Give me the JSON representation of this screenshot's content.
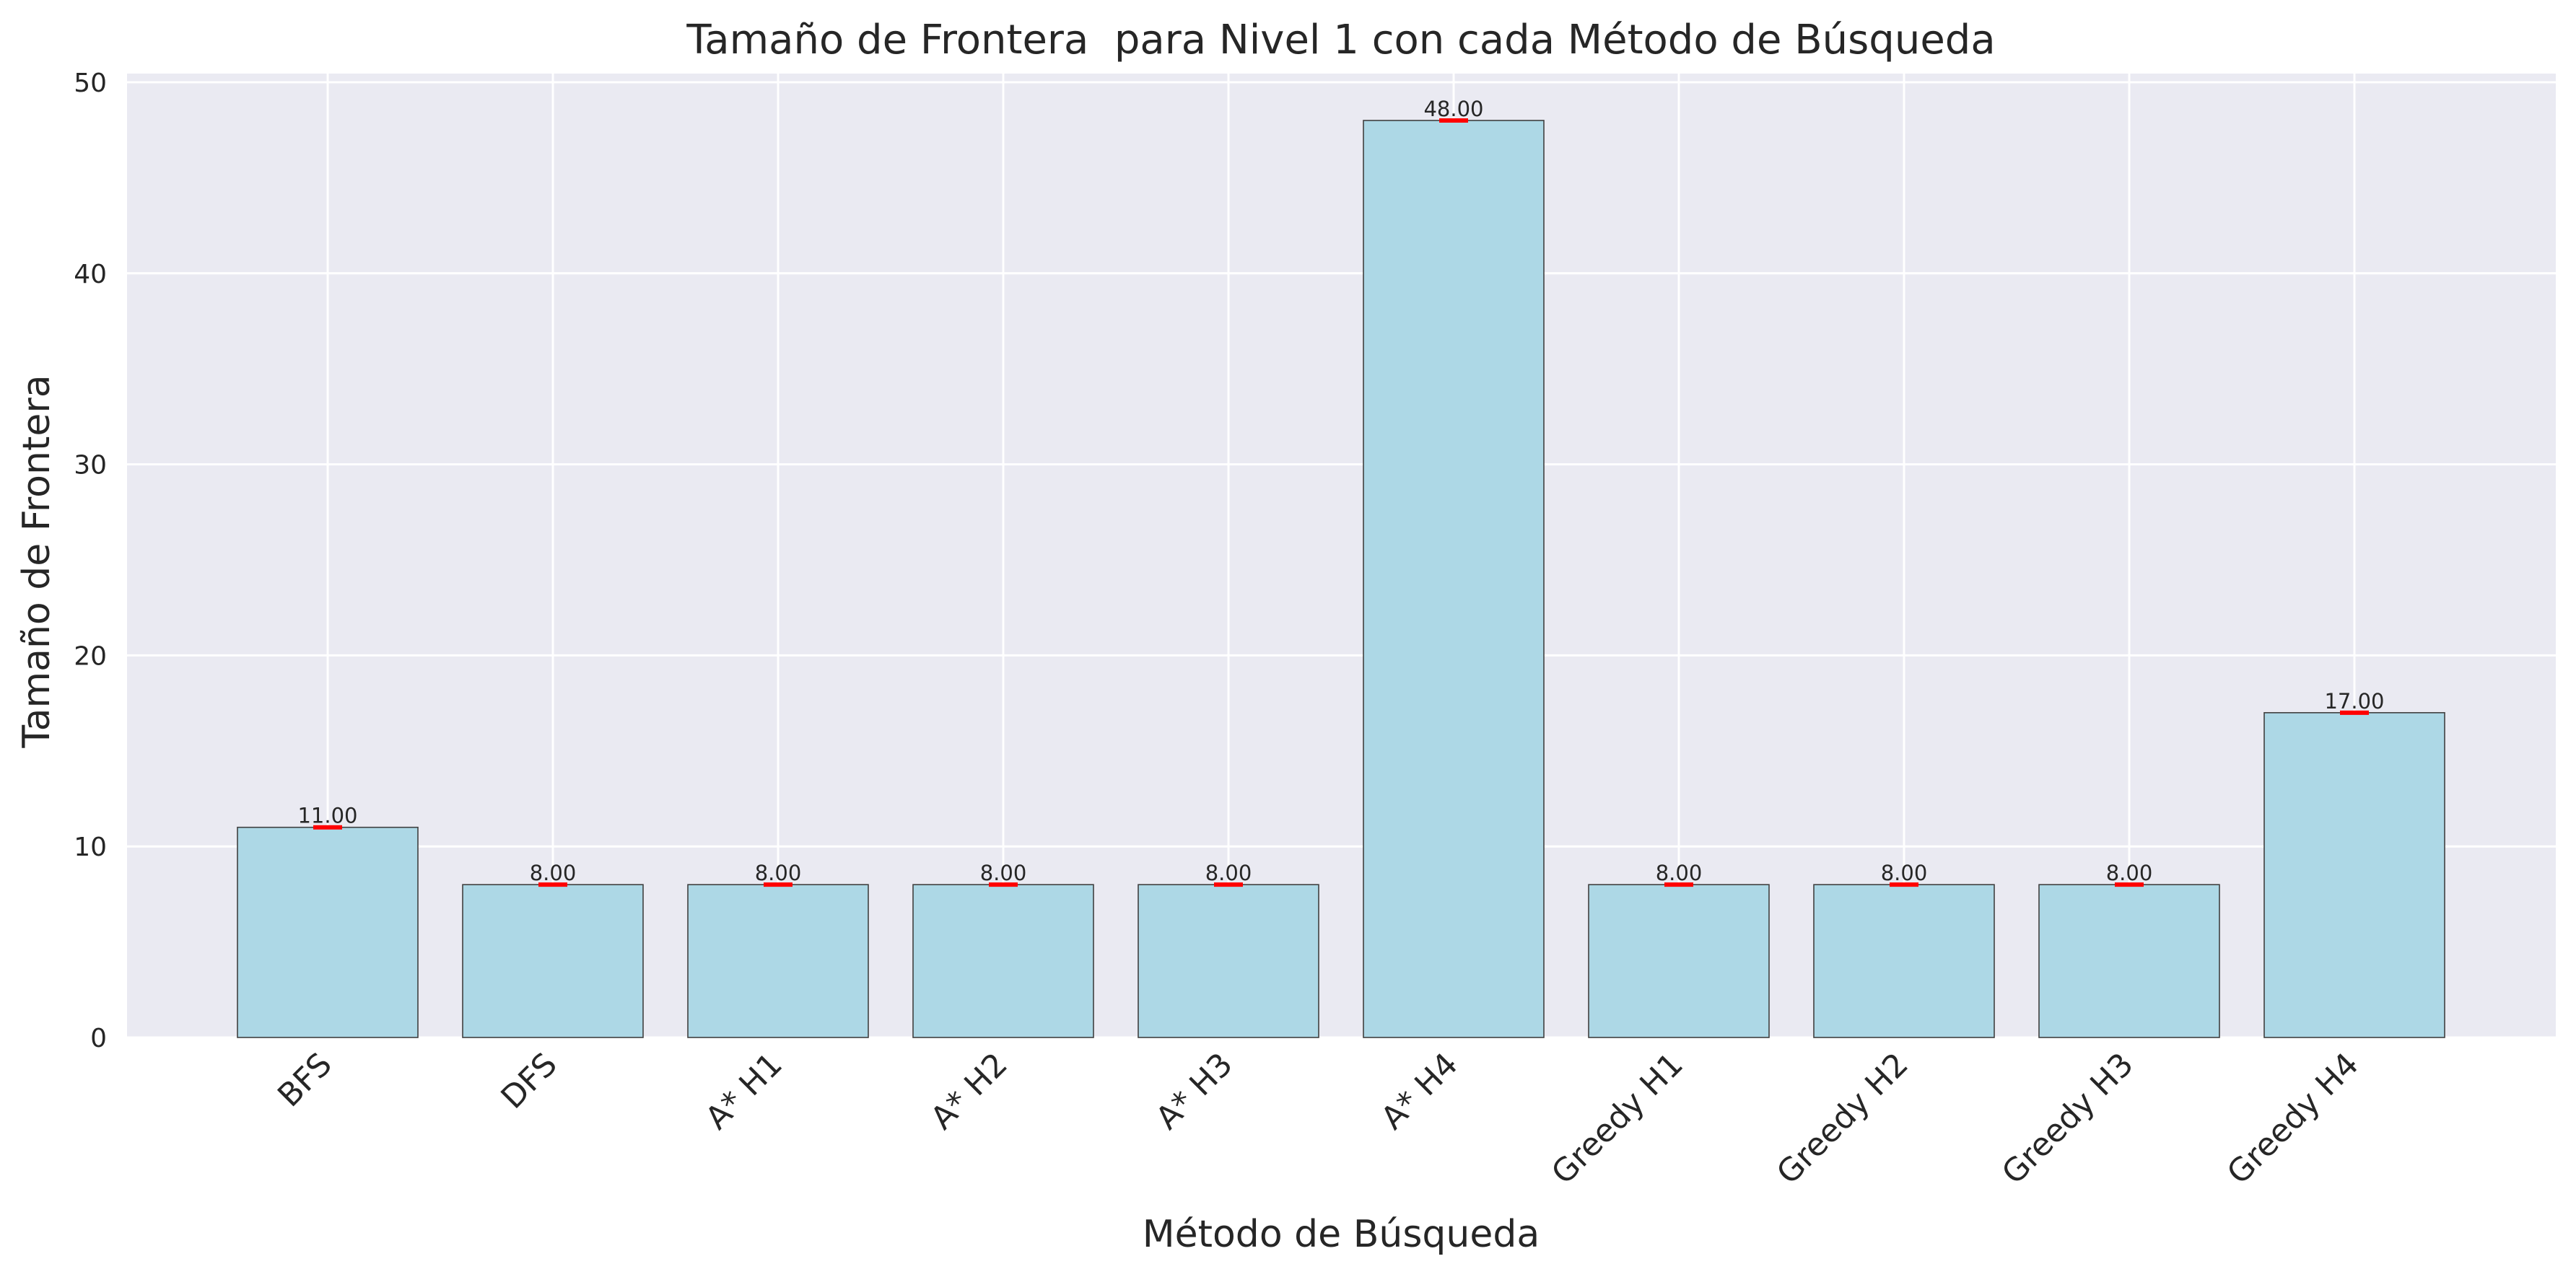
{
  "chart_data": {
    "type": "bar",
    "title": "Tamaño de Frontera  para Nivel 1 con cada Método de Búsqueda",
    "xlabel": "Método de Búsqueda",
    "ylabel": "Tamaño de Frontera",
    "categories": [
      "BFS",
      "DFS",
      "A* H1",
      "A* H2",
      "A* H3",
      "A* H4",
      "Greedy H1",
      "Greedy H2",
      "Greedy H3",
      "Greedy H4"
    ],
    "values": [
      11,
      8,
      8,
      8,
      8,
      48,
      8,
      8,
      8,
      17
    ],
    "value_labels": [
      "11.00",
      "8.00",
      "8.00",
      "8.00",
      "8.00",
      "48.00",
      "8.00",
      "8.00",
      "8.00",
      "17.00"
    ],
    "yticks": [
      0,
      10,
      20,
      30,
      40,
      50
    ],
    "ylim": [
      0,
      50.4
    ],
    "grid": true,
    "colors": {
      "bar": "#add8e6",
      "bar_edge": "#404040",
      "error_bar": "#ff0000",
      "plot_background": "#eaeaf2",
      "grid": "#ffffff"
    }
  }
}
